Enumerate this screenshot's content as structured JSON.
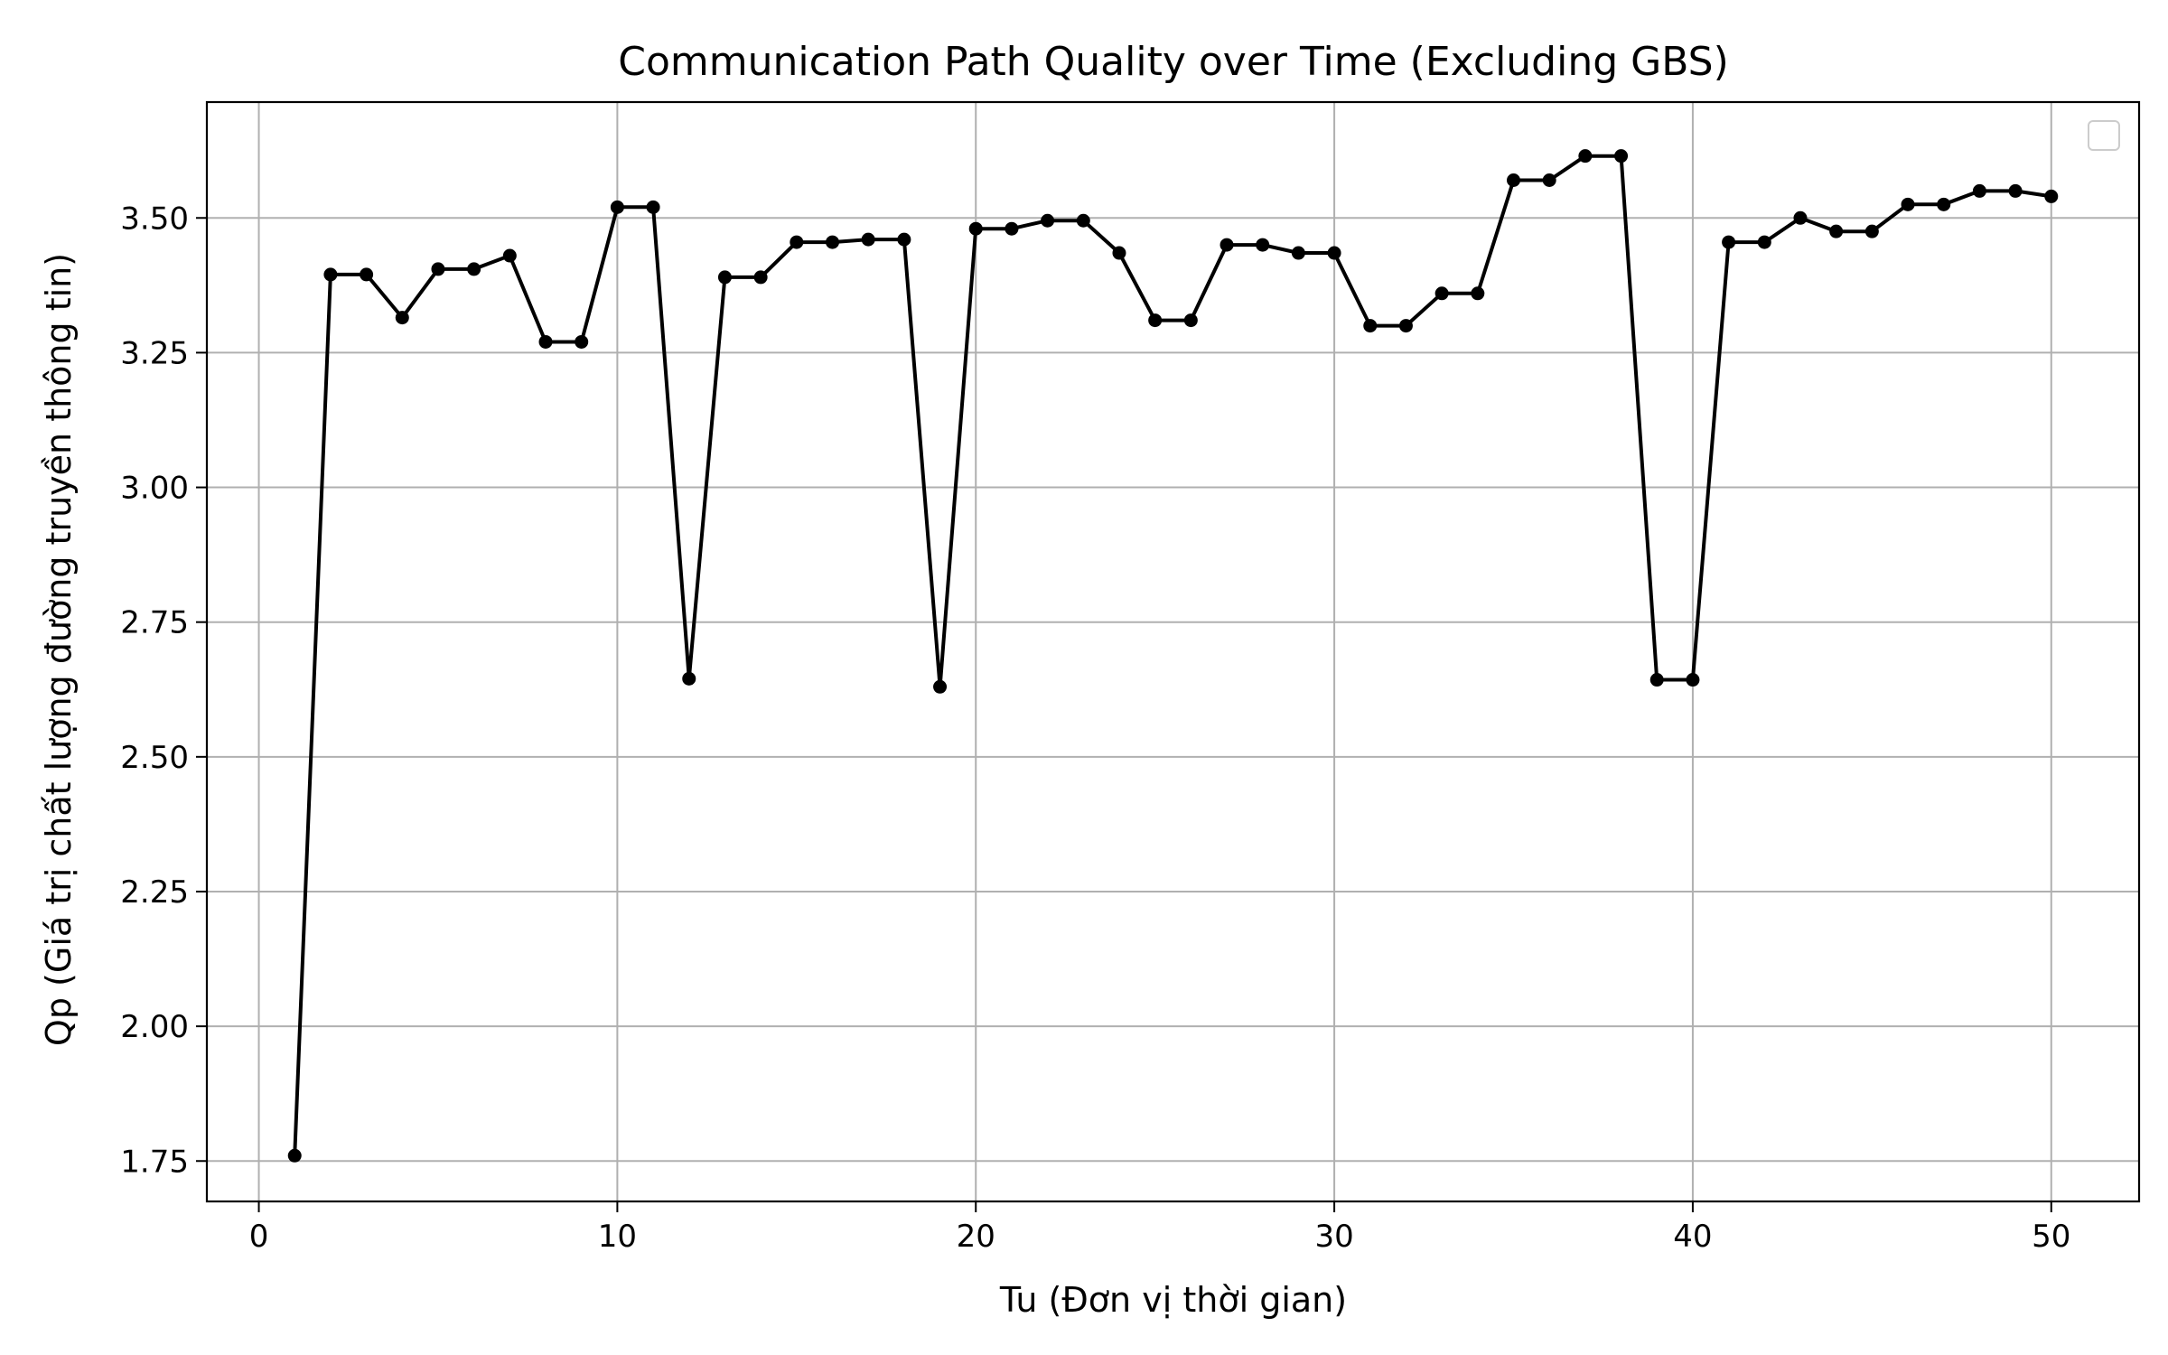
{
  "chart_data": {
    "type": "line",
    "title": "Communication Path Quality over Time (Excluding GBS)",
    "xlabel": "Tu (Đơn vị thời gian)",
    "ylabel": "Qp (Giá trị chất lượng đường truyền thông tin)",
    "xlim": [
      -1.45,
      52.45
    ],
    "ylim": [
      1.675,
      3.715
    ],
    "xticks": [
      0,
      10,
      20,
      30,
      40,
      50
    ],
    "yticks": [
      1.75,
      2.0,
      2.25,
      2.5,
      2.75,
      3.0,
      3.25,
      3.5
    ],
    "ytick_labels": [
      "1.75",
      "2.00",
      "2.25",
      "2.50",
      "2.75",
      "3.00",
      "3.25",
      "3.50"
    ],
    "grid": true,
    "legend": "top-right",
    "series": [
      {
        "color": "#000000",
        "marker": "circle",
        "x": [
          1,
          2,
          3,
          4,
          5,
          6,
          7,
          8,
          9,
          10,
          11,
          12,
          13,
          14,
          15,
          16,
          17,
          18,
          19,
          20,
          21,
          22,
          23,
          24,
          25,
          26,
          27,
          28,
          29,
          30,
          31,
          32,
          33,
          34,
          35,
          36,
          37,
          38,
          39,
          40,
          41,
          42,
          43,
          44,
          45,
          46,
          47,
          48,
          49,
          50
        ],
        "y": [
          1.76,
          3.395,
          3.395,
          3.315,
          3.405,
          3.405,
          3.43,
          3.27,
          3.27,
          3.52,
          3.52,
          2.645,
          3.39,
          3.39,
          3.455,
          3.455,
          3.46,
          3.46,
          2.63,
          3.48,
          3.48,
          3.495,
          3.495,
          3.435,
          3.31,
          3.31,
          3.45,
          3.45,
          3.435,
          3.435,
          3.3,
          3.3,
          3.36,
          3.36,
          3.57,
          3.57,
          3.615,
          3.615,
          2.643,
          2.643,
          3.455,
          3.455,
          3.5,
          3.475,
          3.475,
          3.525,
          3.525,
          3.55,
          3.55,
          3.54
        ]
      }
    ]
  }
}
